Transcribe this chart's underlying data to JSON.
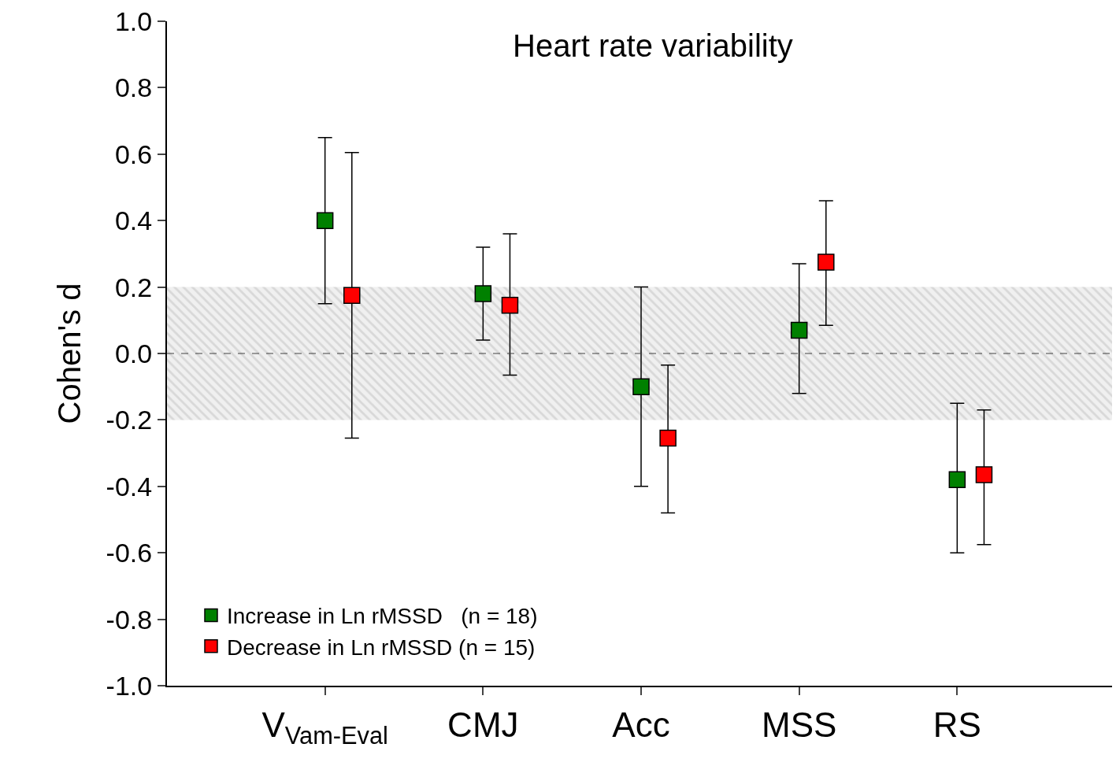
{
  "chart_data": {
    "type": "scatter",
    "title": "Heart rate variability",
    "ylabel": "Cohen's d",
    "categories": [
      "V$_{Vam-Eval}$",
      "CMJ",
      "Acc",
      "MSS",
      "RS"
    ],
    "series": [
      {
        "name": "Increase in Ln rMSSD   (n = 18)",
        "color": "#008000",
        "values": [
          0.4,
          0.18,
          -0.1,
          0.07,
          -0.38
        ],
        "errors": [
          [
            0.15,
            0.65
          ],
          [
            0.04,
            0.32
          ],
          [
            -0.4,
            0.2
          ],
          [
            -0.12,
            0.27
          ],
          [
            -0.6,
            -0.15
          ]
        ]
      },
      {
        "name": "Decrease in Ln rMSSD (n = 15)",
        "color": "#ff0000",
        "values": [
          0.175,
          0.145,
          -0.255,
          0.275,
          -0.365
        ],
        "errors": [
          [
            -0.255,
            0.605
          ],
          [
            -0.065,
            0.36
          ],
          [
            -0.48,
            -0.035
          ],
          [
            0.085,
            0.46
          ],
          [
            -0.575,
            -0.17
          ]
        ]
      }
    ],
    "ylim": [
      -1.0,
      1.0
    ],
    "yticks": [
      {
        "value": -1.0,
        "label": "-1.0"
      },
      {
        "value": -0.8,
        "label": "-0.8"
      },
      {
        "value": -0.6,
        "label": "-0.6"
      },
      {
        "value": -0.4,
        "label": "-0.4"
      },
      {
        "value": -0.2,
        "label": "-0.2"
      },
      {
        "value": 0.0,
        "label": "0.0"
      },
      {
        "value": 0.2,
        "label": "0.2"
      },
      {
        "value": 0.4,
        "label": "0.4"
      },
      {
        "value": 0.6,
        "label": "0.6"
      },
      {
        "value": 0.8,
        "label": "0.8"
      },
      {
        "value": 1.0,
        "label": "1.0"
      }
    ],
    "ref_lines": [
      {
        "axis": "y",
        "value": 0.0,
        "color": "#404040",
        "line_style": "dashed"
      }
    ],
    "bands": [
      {
        "axis": "y",
        "from": -0.2,
        "to": 0.2,
        "color": "#c0c0c0"
      }
    ],
    "marker": "square",
    "legend": "bottom left"
  }
}
